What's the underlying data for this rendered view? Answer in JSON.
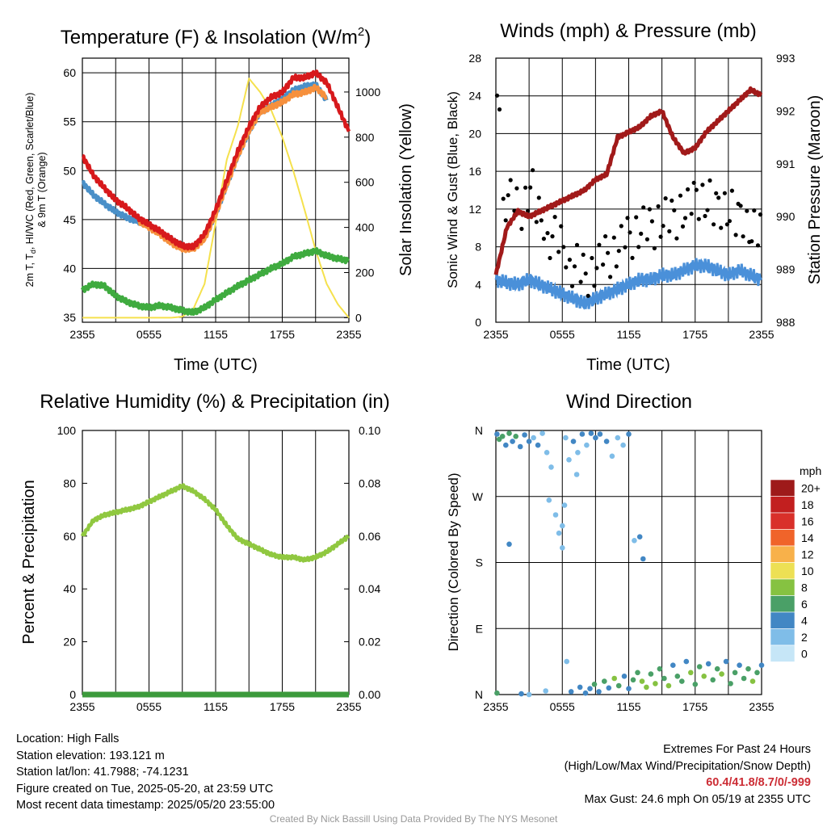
{
  "info": {
    "location": "Location: High Falls",
    "elevation": "Station elevation: 193.121 m",
    "latlon": "Station lat/lon: 41.7988; -74.1231",
    "created": "Figure created on Tue, 2025-05-20, at 23:59 UTC",
    "recent": "Most recent data timestamp: 2025/05/20 23:55:00"
  },
  "extremes": {
    "title": "Extremes For Past 24 Hours",
    "subtitle": "(High/Low/Max Wind/Precipitation/Snow Depth)",
    "values": "60.4/41.8/8.7/0/-999",
    "gust": "Max Gust: 24.6 mph On 05/19 at 2355 UTC"
  },
  "credit": "Created By Nick Bassill Using Data Provided By The NYS Mesonet",
  "colors": {
    "temp": "#d7191c",
    "heat_index": "#5aae3a",
    "dewpoint": "#3fab3f",
    "nine_m": "#f6903d",
    "wind_chill": "#4a90c8",
    "solar": "#f5e14d",
    "sonic_wind": "#4a90d9",
    "gust": "#000000",
    "pressure": "#a11a1a",
    "rh": "#90c840",
    "precip": "#3c9a3c",
    "grid": "#000000"
  },
  "chart_data": [
    {
      "id": "temperature",
      "type": "line",
      "title": "Temperature (F) & Insolation (W/m",
      "title_sup": "2",
      "title_close": ")",
      "xlabel": "Time (UTC)",
      "ylabel_line1": "2m T, T",
      "ylabel_sub": "d",
      "ylabel_rest": ", HI/WC (Red, Green, Scarlet/Blue)",
      "ylabel_line2": "& 9m T (Orange)",
      "y2label": "Solar Insolation (Yellow)",
      "xticks": [
        "2355",
        "0555",
        "1155",
        "1755",
        "2355"
      ],
      "ylim": [
        34.5,
        61.5
      ],
      "yticks": [
        35,
        40,
        45,
        50,
        55,
        60
      ],
      "y2lim": [
        -20,
        1150
      ],
      "y2ticks": [
        0,
        200,
        400,
        600,
        800,
        1000
      ],
      "series": [
        {
          "name": "2m T",
          "color": "#d7191c",
          "x": [
            0,
            1,
            2,
            3,
            4,
            5,
            6,
            7,
            8,
            9,
            10,
            11,
            12,
            13,
            14,
            15,
            16,
            17,
            18,
            19,
            20,
            21,
            22,
            23,
            24
          ],
          "y": [
            51.5,
            49.5,
            48.2,
            47.0,
            46.2,
            45.2,
            44.5,
            43.8,
            43.0,
            42.3,
            42.2,
            43.5,
            46.0,
            49.0,
            52.0,
            54.5,
            56.5,
            57.5,
            58.0,
            59.5,
            59.5,
            60.0,
            59.0,
            56.5,
            54.0
          ]
        },
        {
          "name": "9m T",
          "color": "#f6903d",
          "x": [
            5,
            6,
            7,
            8,
            9,
            10,
            11,
            12,
            13,
            14,
            15,
            16,
            17,
            18,
            19,
            20,
            21,
            22
          ],
          "y": [
            44.9,
            44.2,
            43.5,
            42.6,
            42.0,
            42.0,
            43.0,
            45.5,
            48.5,
            51.5,
            54.0,
            56.0,
            56.5,
            57.0,
            57.8,
            58.0,
            58.5,
            57.5
          ]
        },
        {
          "name": "Td",
          "color": "#3fab3f",
          "x": [
            0,
            1,
            2,
            3,
            4,
            5,
            6,
            7,
            8,
            9,
            10,
            11,
            12,
            13,
            14,
            15,
            16,
            17,
            18,
            19,
            20,
            21,
            22,
            23,
            24
          ],
          "y": [
            37.8,
            38.4,
            38.2,
            37.2,
            36.6,
            36.2,
            36.0,
            36.2,
            36.0,
            35.7,
            35.5,
            36.0,
            36.8,
            37.5,
            38.2,
            38.8,
            39.4,
            40.0,
            40.5,
            41.2,
            41.5,
            41.8,
            41.3,
            41.0,
            40.8
          ]
        },
        {
          "name": "WC",
          "color": "#4a90c8",
          "x": [
            0,
            1,
            2,
            3,
            4,
            5,
            6,
            7,
            8,
            9,
            10,
            11,
            12,
            13,
            14,
            15,
            16,
            17,
            18,
            19,
            20,
            21,
            22
          ],
          "y": [
            48.8,
            47.5,
            46.6,
            45.8,
            45.2,
            44.8,
            44.5,
            43.7,
            43.0,
            42.3,
            42.1,
            43.2,
            45.5,
            48.5,
            51.5,
            54.0,
            56.0,
            56.6,
            57.4,
            58.2,
            58.6,
            58.8,
            57.2
          ]
        },
        {
          "name": "Solar",
          "color": "#f5e14d",
          "axis": "y2",
          "x": [
            0,
            1,
            2,
            3,
            4,
            5,
            6,
            7,
            8,
            9,
            10,
            11,
            12,
            13,
            14,
            15,
            16,
            17,
            18,
            19,
            20,
            21,
            22,
            23,
            24
          ],
          "y": [
            0,
            0,
            0,
            0,
            0,
            0,
            0,
            0,
            0,
            5,
            40,
            150,
            420,
            700,
            850,
            1060,
            1000,
            920,
            800,
            650,
            480,
            300,
            150,
            60,
            0
          ]
        }
      ]
    },
    {
      "id": "winds",
      "type": "line",
      "title": "Winds (mph) & Pressure (mb)",
      "xlabel": "Time (UTC)",
      "ylabel": "Sonic Wind & Gust (Blue, Black)",
      "y2label": "Station Pressure (Maroon)",
      "xticks": [
        "2355",
        "0555",
        "1155",
        "1755",
        "2355"
      ],
      "ylim": [
        0,
        28
      ],
      "yticks": [
        0,
        4,
        8,
        12,
        16,
        20,
        24,
        28
      ],
      "y2lim": [
        988,
        993
      ],
      "y2ticks": [
        988,
        989,
        990,
        991,
        992,
        993
      ],
      "series": [
        {
          "name": "Sonic Wind",
          "color": "#4a90d9",
          "x": [
            0,
            1,
            2,
            3,
            4,
            5,
            6,
            7,
            8,
            9,
            10,
            11,
            12,
            13,
            14,
            15,
            16,
            17,
            18,
            19,
            20,
            21,
            22,
            23,
            24
          ],
          "y": [
            4.5,
            4.2,
            4.0,
            4.5,
            4.0,
            3.5,
            3.0,
            2.5,
            2.0,
            2.5,
            3.0,
            3.5,
            4.0,
            4.5,
            4.5,
            5.0,
            5.0,
            5.5,
            6.0,
            6.0,
            5.5,
            5.0,
            5.5,
            5.0,
            4.5
          ]
        },
        {
          "name": "Gust",
          "color": "#000000",
          "mode": "markers",
          "x": [
            0,
            1,
            2,
            3,
            4,
            5,
            6,
            7,
            8,
            9,
            10,
            11,
            12,
            13,
            14,
            15,
            16,
            17,
            18,
            19,
            20,
            21,
            22,
            23,
            24
          ],
          "y": [
            24.6,
            13,
            12,
            14,
            11,
            9,
            8,
            6,
            5,
            6,
            7,
            8,
            9,
            10,
            10,
            11,
            11,
            12,
            13,
            13,
            12,
            12,
            11,
            10,
            10
          ]
        },
        {
          "name": "Pressure",
          "color": "#a11a1a",
          "axis": "y2",
          "x": [
            0,
            1,
            2,
            3,
            4,
            5,
            6,
            7,
            8,
            9,
            10,
            11,
            12,
            13,
            14,
            15,
            16,
            17,
            18,
            19,
            20,
            21,
            22,
            23,
            24
          ],
          "y": [
            988.9,
            989.8,
            990.1,
            990.0,
            990.1,
            990.2,
            990.3,
            990.4,
            990.5,
            990.7,
            990.8,
            991.5,
            991.6,
            991.7,
            991.9,
            992.0,
            991.5,
            991.2,
            991.3,
            991.6,
            991.8,
            992.0,
            992.2,
            992.4,
            992.3
          ]
        }
      ]
    },
    {
      "id": "humidity",
      "type": "line",
      "title": "Relative Humidity (%) & Precipitation (in)",
      "ylabel": "Percent & Precipitation",
      "xticks": [
        "2355",
        "0555",
        "1155",
        "1755",
        "2355"
      ],
      "ylim": [
        0,
        100
      ],
      "yticks": [
        0,
        20,
        40,
        60,
        80,
        100
      ],
      "y2lim": [
        0,
        0.1
      ],
      "y2ticks": [
        "0.00",
        "0.02",
        "0.04",
        "0.06",
        "0.08",
        "0.10"
      ],
      "series": [
        {
          "name": "RH",
          "color": "#90c840",
          "x": [
            0,
            1,
            2,
            3,
            4,
            5,
            6,
            7,
            8,
            9,
            10,
            11,
            12,
            13,
            14,
            15,
            16,
            17,
            18,
            19,
            20,
            21,
            22,
            23,
            24
          ],
          "y": [
            60,
            66,
            68,
            69,
            70,
            71,
            73,
            75,
            77,
            79,
            77,
            74,
            70,
            64,
            59,
            57,
            55,
            53,
            52,
            52,
            51,
            52,
            54,
            57,
            60
          ]
        },
        {
          "name": "Precipitation",
          "color": "#3c9a3c",
          "axis": "y2",
          "x": [
            0,
            24
          ],
          "y": [
            0,
            0
          ]
        }
      ]
    },
    {
      "id": "wind_direction",
      "type": "scatter",
      "title": "Wind Direction",
      "ylabel": "Direction (Colored By Speed)",
      "xticks": [
        "2355",
        "0555",
        "1155",
        "1755",
        "2355"
      ],
      "yticks": [
        "N",
        "E",
        "S",
        "W",
        "N"
      ],
      "ylim": [
        0,
        360
      ],
      "legend_title": "mph",
      "legend_labels": [
        "0",
        "2",
        "4",
        "6",
        "8",
        "10",
        "12",
        "14",
        "16",
        "18",
        "20+"
      ],
      "legend_colors": [
        "#c6e6f7",
        "#7fbde8",
        "#4287c4",
        "#4aa067",
        "#86c241",
        "#ede054",
        "#f8b14a",
        "#f0642a",
        "#d9302a",
        "#c21f1f",
        "#9e1a1a"
      ],
      "points": [
        {
          "x": 0.1,
          "y": 355,
          "speed": 4
        },
        {
          "x": 0.3,
          "y": 348,
          "speed": 5
        },
        {
          "x": 0.6,
          "y": 352,
          "speed": 6
        },
        {
          "x": 0.9,
          "y": 340,
          "speed": 4
        },
        {
          "x": 1.2,
          "y": 356,
          "speed": 5
        },
        {
          "x": 1.5,
          "y": 345,
          "speed": 3
        },
        {
          "x": 1.8,
          "y": 352,
          "speed": 6
        },
        {
          "x": 2.2,
          "y": 338,
          "speed": 4
        },
        {
          "x": 2.6,
          "y": 354,
          "speed": 3
        },
        {
          "x": 3.0,
          "y": 345,
          "speed": 4
        },
        {
          "x": 3.4,
          "y": 350,
          "speed": 2
        },
        {
          "x": 3.8,
          "y": 340,
          "speed": 3
        },
        {
          "x": 4.2,
          "y": 356,
          "speed": 2
        },
        {
          "x": 4.6,
          "y": 330,
          "speed": 2
        },
        {
          "x": 5.0,
          "y": 310,
          "speed": 1
        },
        {
          "x": 5.4,
          "y": 245,
          "speed": 2
        },
        {
          "x": 5.7,
          "y": 220,
          "speed": 2
        },
        {
          "x": 6.0,
          "y": 200,
          "speed": 1
        },
        {
          "x": 6.3,
          "y": 350,
          "speed": 2
        },
        {
          "x": 6.6,
          "y": 320,
          "speed": 2
        },
        {
          "x": 7.0,
          "y": 345,
          "speed": 3
        },
        {
          "x": 7.4,
          "y": 330,
          "speed": 2
        },
        {
          "x": 7.8,
          "y": 355,
          "speed": 3
        },
        {
          "x": 8.2,
          "y": 340,
          "speed": 2
        },
        {
          "x": 8.6,
          "y": 356,
          "speed": 4
        },
        {
          "x": 9.0,
          "y": 350,
          "speed": 3
        },
        {
          "x": 9.4,
          "y": 355,
          "speed": 4
        },
        {
          "x": 10.0,
          "y": 345,
          "speed": 3
        },
        {
          "x": 10.5,
          "y": 325,
          "speed": 2
        },
        {
          "x": 11.0,
          "y": 350,
          "speed": 2
        },
        {
          "x": 11.5,
          "y": 340,
          "speed": 2
        },
        {
          "x": 12.0,
          "y": 355,
          "speed": 3
        },
        {
          "x": 12.5,
          "y": 210,
          "speed": 2
        },
        {
          "x": 1.2,
          "y": 205,
          "speed": 4
        },
        {
          "x": 0.1,
          "y": 2,
          "speed": 6
        },
        {
          "x": 2.3,
          "y": 1,
          "speed": 3
        },
        {
          "x": 3.0,
          "y": 0,
          "speed": 2
        },
        {
          "x": 4.5,
          "y": 5,
          "speed": 2
        },
        {
          "x": 6.4,
          "y": 45,
          "speed": 2
        },
        {
          "x": 6.8,
          "y": 4,
          "speed": 3
        },
        {
          "x": 7.6,
          "y": 10,
          "speed": 4
        },
        {
          "x": 8.1,
          "y": 2,
          "speed": 3
        },
        {
          "x": 8.5,
          "y": 8,
          "speed": 4
        },
        {
          "x": 8.9,
          "y": 14,
          "speed": 5
        },
        {
          "x": 9.3,
          "y": 4,
          "speed": 3
        },
        {
          "x": 9.8,
          "y": 18,
          "speed": 6
        },
        {
          "x": 10.2,
          "y": 9,
          "speed": 4
        },
        {
          "x": 10.7,
          "y": 22,
          "speed": 7
        },
        {
          "x": 11.1,
          "y": 12,
          "speed": 5
        },
        {
          "x": 11.6,
          "y": 25,
          "speed": 4
        },
        {
          "x": 12.0,
          "y": 8,
          "speed": 4
        },
        {
          "x": 12.4,
          "y": 20,
          "speed": 5
        },
        {
          "x": 12.8,
          "y": 30,
          "speed": 6
        },
        {
          "x": 13.2,
          "y": 18,
          "speed": 7
        },
        {
          "x": 13.6,
          "y": 10,
          "speed": 8
        },
        {
          "x": 14.0,
          "y": 28,
          "speed": 6
        },
        {
          "x": 14.4,
          "y": 15,
          "speed": 7
        },
        {
          "x": 14.8,
          "y": 35,
          "speed": 5
        },
        {
          "x": 15.2,
          "y": 22,
          "speed": 6
        },
        {
          "x": 15.6,
          "y": 12,
          "speed": 7
        },
        {
          "x": 16.0,
          "y": 40,
          "speed": 4
        },
        {
          "x": 16.4,
          "y": 25,
          "speed": 6
        },
        {
          "x": 16.8,
          "y": 18,
          "speed": 5
        },
        {
          "x": 17.2,
          "y": 45,
          "speed": 4
        },
        {
          "x": 17.6,
          "y": 30,
          "speed": 7
        },
        {
          "x": 18.0,
          "y": 14,
          "speed": 6
        },
        {
          "x": 18.4,
          "y": 38,
          "speed": 5
        },
        {
          "x": 18.8,
          "y": 25,
          "speed": 7
        },
        {
          "x": 19.2,
          "y": 42,
          "speed": 4
        },
        {
          "x": 19.6,
          "y": 20,
          "speed": 6
        },
        {
          "x": 20.0,
          "y": 35,
          "speed": 5
        },
        {
          "x": 20.4,
          "y": 28,
          "speed": 7
        },
        {
          "x": 20.8,
          "y": 45,
          "speed": 4
        },
        {
          "x": 21.2,
          "y": 15,
          "speed": 6
        },
        {
          "x": 21.6,
          "y": 30,
          "speed": 5
        },
        {
          "x": 22.0,
          "y": 40,
          "speed": 4
        },
        {
          "x": 22.4,
          "y": 22,
          "speed": 6
        },
        {
          "x": 22.8,
          "y": 35,
          "speed": 5
        },
        {
          "x": 23.2,
          "y": 18,
          "speed": 7
        },
        {
          "x": 23.6,
          "y": 30,
          "speed": 5
        },
        {
          "x": 24.0,
          "y": 40,
          "speed": 4
        },
        {
          "x": 13.0,
          "y": 215,
          "speed": 3
        },
        {
          "x": 13.3,
          "y": 185,
          "speed": 4
        },
        {
          "x": 4.8,
          "y": 265,
          "speed": 2
        },
        {
          "x": 6.2,
          "y": 258,
          "speed": 2
        },
        {
          "x": 6.0,
          "y": 230,
          "speed": 1
        },
        {
          "x": 7.3,
          "y": 300,
          "speed": 2
        }
      ]
    }
  ]
}
